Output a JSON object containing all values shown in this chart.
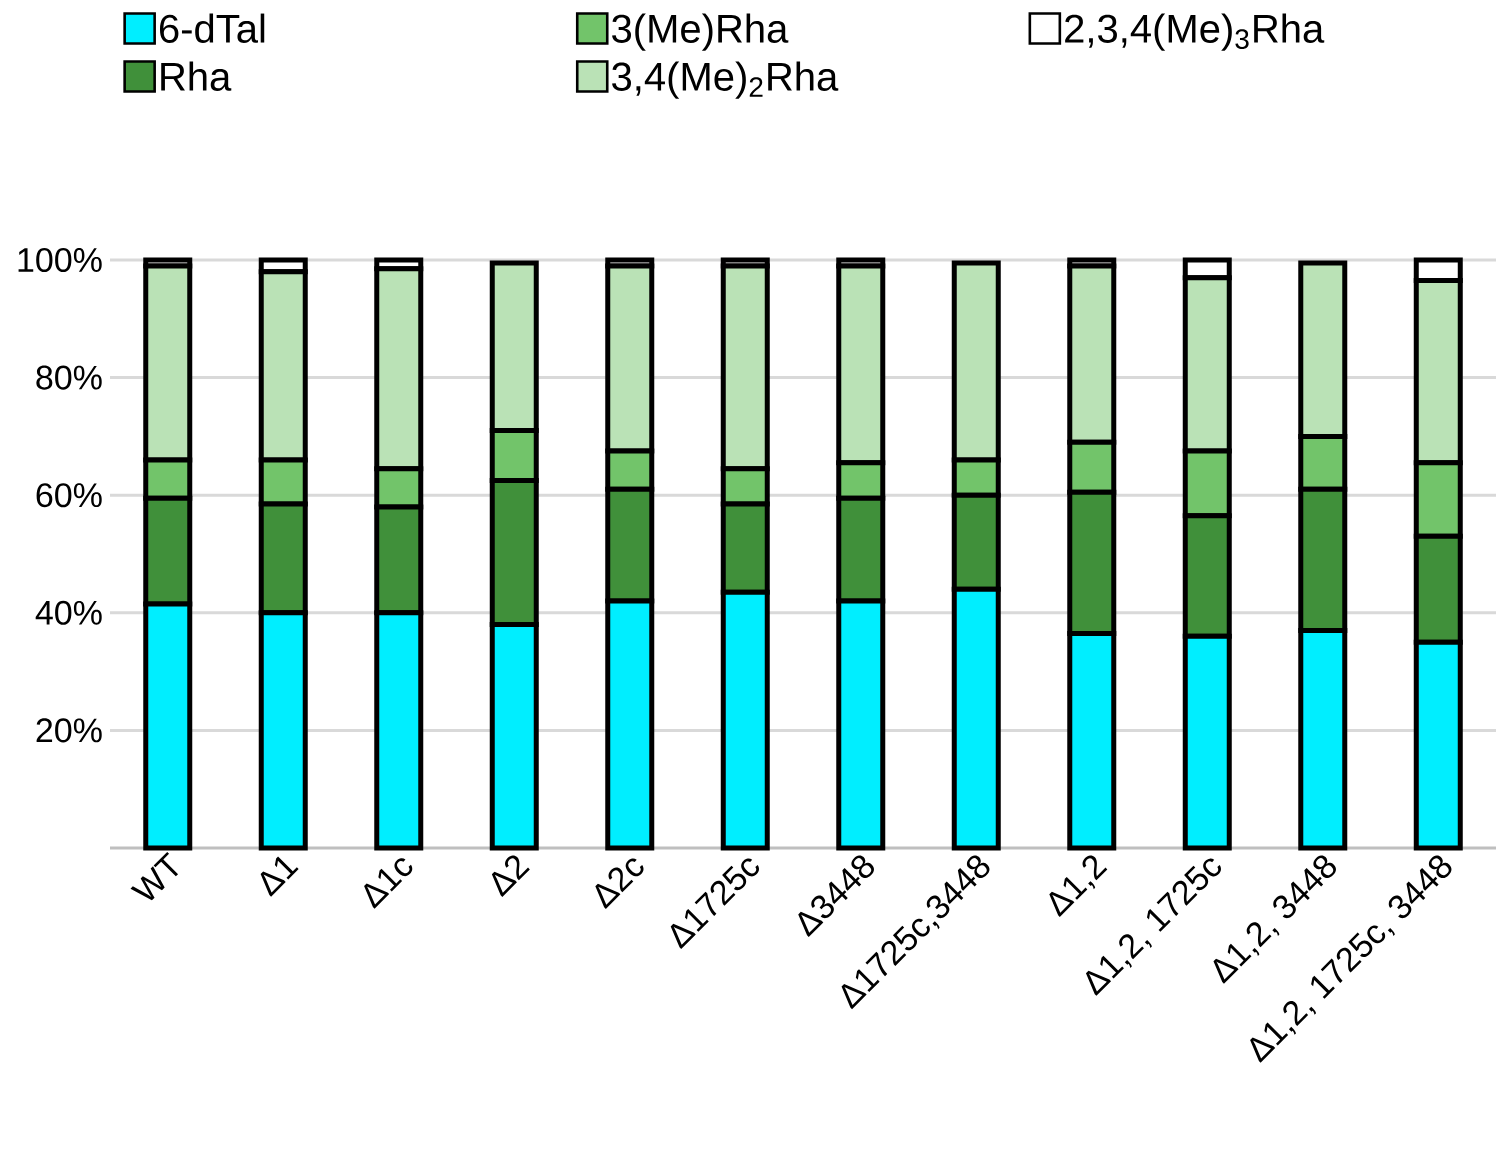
{
  "chart_data": {
    "type": "bar",
    "stacked": true,
    "categories": [
      "WT",
      "Δ1",
      "Δ1c",
      "Δ2",
      "Δ2c",
      "Δ1725c",
      "Δ3448",
      "Δ1725c,3448",
      "Δ1,2",
      "Δ1,2, 1725c",
      "Δ1,2, 3448",
      "Δ1,2, 1725c, 3448"
    ],
    "series": [
      {
        "name": "6-dTal",
        "color": "#00eeff",
        "values": [
          41.5,
          40,
          40,
          38,
          42,
          43.5,
          42,
          44,
          36.5,
          36,
          37,
          35
        ]
      },
      {
        "name": "Rha",
        "color": "#40903a",
        "values": [
          18,
          18.5,
          18,
          24.5,
          19,
          15,
          17.5,
          16,
          24,
          20.5,
          24,
          18
        ]
      },
      {
        "name": "3(Me)Rha",
        "color": "#72c46a",
        "values": [
          6.5,
          7.5,
          6.5,
          8.5,
          6.5,
          6,
          6,
          6,
          8.5,
          11,
          9,
          12.5
        ]
      },
      {
        "name": "3,4(Me)$_{2}$Rha",
        "color": "#bae2b6",
        "values": [
          33,
          32,
          34,
          28.5,
          31.5,
          34.5,
          33.5,
          33.5,
          30,
          29.5,
          29.5,
          31
        ]
      },
      {
        "name": "2,3,4(Me)$_{3}$Rha",
        "color": "#ffffff",
        "values": [
          1,
          2,
          1.5,
          null,
          1,
          1,
          1,
          null,
          1,
          3,
          null,
          3.5
        ]
      }
    ],
    "ylim": [
      0,
      100
    ],
    "yticks": [
      {
        "value": 20,
        "label": "20%"
      },
      {
        "value": 40,
        "label": "40%"
      },
      {
        "value": 60,
        "label": "60%"
      },
      {
        "value": 80,
        "label": "80%"
      },
      {
        "value": 100,
        "label": "100%"
      }
    ],
    "grid": "y",
    "legend": "top"
  }
}
